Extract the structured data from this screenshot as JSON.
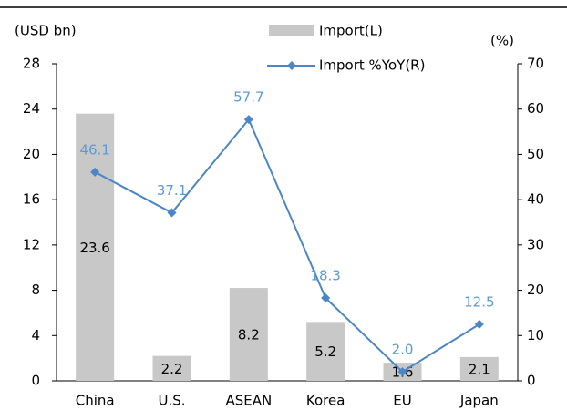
{
  "chart_data": {
    "type": "bar-line",
    "y_label": "(USD bn)",
    "y2_label": "(%)",
    "categories": [
      "China",
      "U.S.",
      "ASEAN",
      "Korea",
      "EU",
      "Japan"
    ],
    "series": [
      {
        "name": "Import(L)",
        "type": "bar",
        "color": "#c8c8c8",
        "values": [
          23.6,
          2.2,
          8.2,
          5.2,
          1.6,
          2.1
        ]
      },
      {
        "name": "Import %YoY(R)",
        "type": "line",
        "axis": "y2",
        "color": "#4a86c8",
        "label_color": "#5b9bd5",
        "values": [
          46.1,
          37.1,
          57.7,
          18.3,
          2.0,
          12.5
        ],
        "value_labels": [
          "46.1",
          "37.1",
          "57.7",
          "18.3",
          "2.0",
          "12.5"
        ]
      }
    ],
    "ylim": [
      0,
      28
    ],
    "yticks": [
      0,
      4,
      8,
      12,
      16,
      20,
      24,
      28
    ],
    "y2lim": [
      0,
      70
    ],
    "y2ticks": [
      0,
      10,
      20,
      30,
      40,
      50,
      60,
      70
    ]
  }
}
